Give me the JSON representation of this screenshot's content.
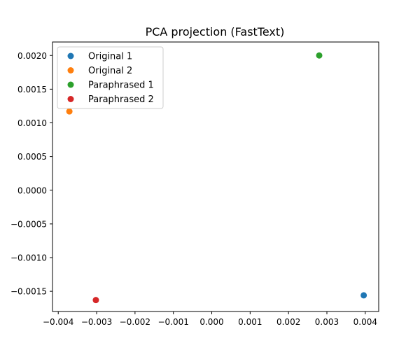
{
  "chart_data": {
    "type": "scatter",
    "title": "PCA projection (FastText)",
    "xlabel": "",
    "ylabel": "",
    "xlim": [
      -0.00415,
      0.00435
    ],
    "ylim": [
      -0.0018,
      0.0022
    ],
    "x_ticks": [
      {
        "value": -0.004,
        "label": "−0.004"
      },
      {
        "value": -0.003,
        "label": "−0.003"
      },
      {
        "value": -0.002,
        "label": "−0.002"
      },
      {
        "value": -0.001,
        "label": "−0.001"
      },
      {
        "value": 0.0,
        "label": "0.000"
      },
      {
        "value": 0.001,
        "label": "0.001"
      },
      {
        "value": 0.002,
        "label": "0.002"
      },
      {
        "value": 0.003,
        "label": "0.003"
      },
      {
        "value": 0.004,
        "label": "0.004"
      }
    ],
    "y_ticks": [
      {
        "value": -0.0015,
        "label": "−0.0015"
      },
      {
        "value": -0.001,
        "label": "−0.0010"
      },
      {
        "value": -0.0005,
        "label": "−0.0005"
      },
      {
        "value": 0.0,
        "label": "0.0000"
      },
      {
        "value": 0.0005,
        "label": "0.0005"
      },
      {
        "value": 0.001,
        "label": "0.0010"
      },
      {
        "value": 0.0015,
        "label": "0.0015"
      },
      {
        "value": 0.002,
        "label": "0.0020"
      }
    ],
    "series": [
      {
        "name": "Original 1",
        "color": "#1f77b4",
        "x": [
          0.00396
        ],
        "y": [
          -0.00156
        ]
      },
      {
        "name": "Original 2",
        "color": "#ff7f0e",
        "x": [
          -0.00371
        ],
        "y": [
          0.00117
        ]
      },
      {
        "name": "Paraphrased 1",
        "color": "#2ca02c",
        "x": [
          0.0028
        ],
        "y": [
          0.002
        ]
      },
      {
        "name": "Paraphrased 2",
        "color": "#d62728",
        "x": [
          -0.00302
        ],
        "y": [
          -0.00163
        ]
      }
    ],
    "legend": {
      "position": "top-left"
    },
    "grid": false
  }
}
